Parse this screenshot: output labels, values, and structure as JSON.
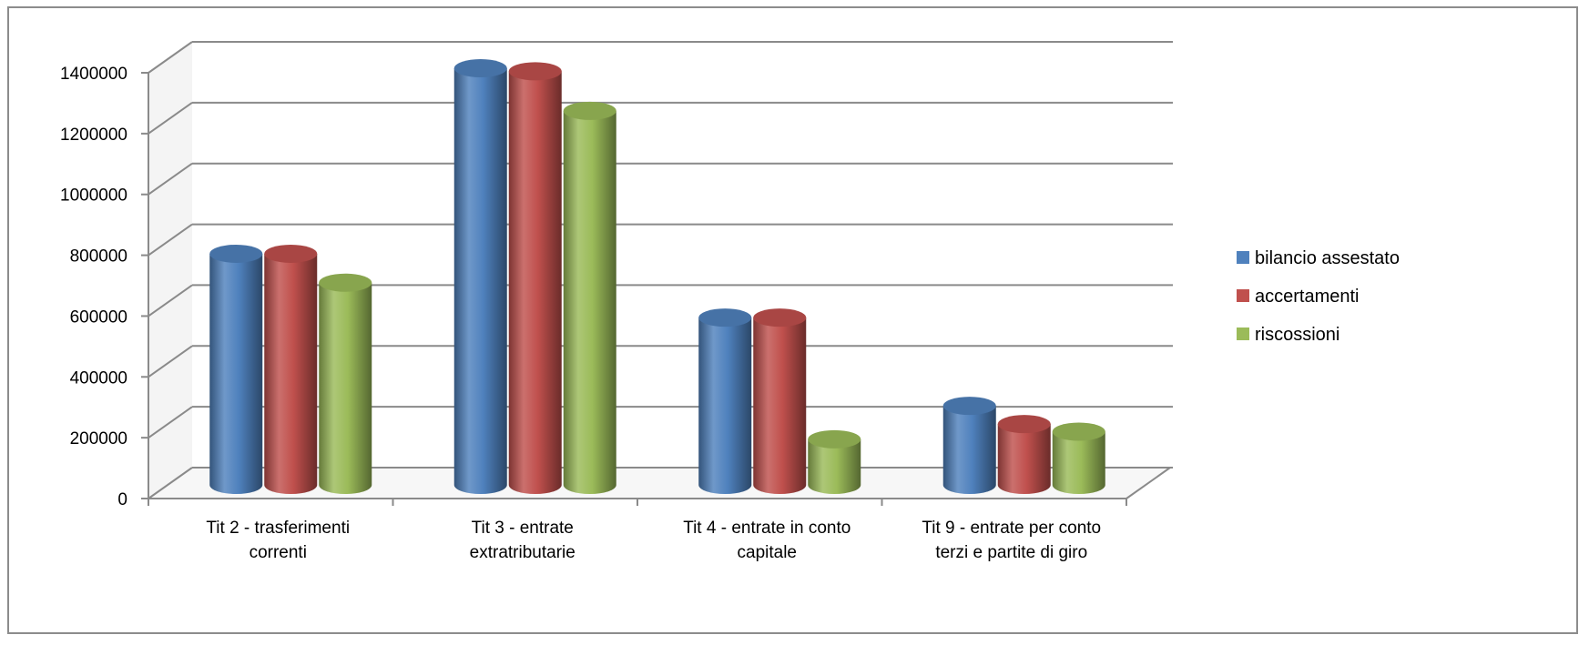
{
  "chart_data": {
    "type": "bar",
    "style": "3d-cylinder",
    "categories": [
      [
        "Tit 2 - trasferimenti",
        "correnti"
      ],
      [
        "Tit 3 - entrate",
        "extratributarie"
      ],
      [
        "Tit 4 - entrate in conto",
        "capitale"
      ],
      [
        "Tit 9 - entrate per conto",
        "terzi e partite di giro"
      ]
    ],
    "series": [
      {
        "name": "bilancio assestato",
        "color": "#4f81bd",
        "values": [
          760000,
          1370000,
          550000,
          260000
        ]
      },
      {
        "name": "accertamenti",
        "color": "#c0504d",
        "values": [
          760000,
          1360000,
          550000,
          200000
        ]
      },
      {
        "name": "riscossioni",
        "color": "#9bbb59",
        "values": [
          665000,
          1230000,
          150000,
          175000
        ]
      }
    ],
    "ylim": [
      0,
      1400000
    ],
    "yticks": [
      0,
      200000,
      400000,
      600000,
      800000,
      1000000,
      1200000,
      1400000
    ],
    "ytick_labels": [
      "0",
      "200000",
      "400000",
      "600000",
      "800000",
      "1000000",
      "1200000",
      "1400000"
    ],
    "grid": true,
    "legend_position": "right",
    "title": "",
    "xlabel": "",
    "ylabel": ""
  }
}
